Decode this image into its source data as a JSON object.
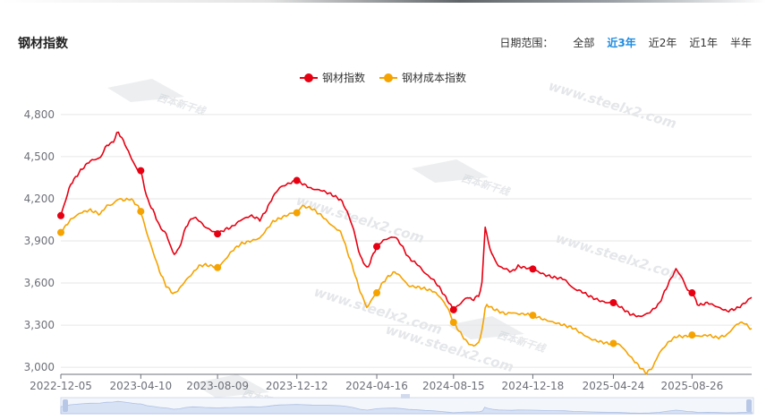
{
  "header": {
    "title": "钢材指数",
    "range_label": "日期范围：",
    "range_options": [
      "全部",
      "近3年",
      "近2年",
      "近1年",
      "半年"
    ],
    "active_range": "近3年"
  },
  "watermark": {
    "text": "www.steelx2.com",
    "logo_text": "西本新干线"
  },
  "colors": {
    "steel": "#e60012",
    "cost": "#f5a300",
    "active": "#1f8de0"
  },
  "chart_data": {
    "type": "line",
    "title": "钢材指数",
    "xlabel": "",
    "ylabel": "",
    "ylim": [
      2950,
      4850
    ],
    "yticks": [
      3000,
      3300,
      3600,
      3900,
      4200,
      4500,
      4800
    ],
    "ytick_labels": [
      "3,000",
      "3,300",
      "3,600",
      "3,900",
      "4,200",
      "4,500",
      "4,800"
    ],
    "xtick_labels": [
      "2022-12-05",
      "2023-04-10",
      "2023-08-09",
      "2023-12-12",
      "2024-04-16",
      "2024-08-15",
      "2024-12-18",
      "2025-04-24",
      "2025-08-26"
    ],
    "x_start": "2022-12-05",
    "x_end": "2025-11-28",
    "grid": true,
    "legend_position": "top-center",
    "series": [
      {
        "name": "钢材指数",
        "color": "#e60012",
        "points": [
          [
            "2022-12-05",
            4080
          ],
          [
            "2022-12-20",
            4300
          ],
          [
            "2023-01-05",
            4400
          ],
          [
            "2023-01-20",
            4470
          ],
          [
            "2023-02-05",
            4490
          ],
          [
            "2023-02-15",
            4580
          ],
          [
            "2023-02-25",
            4600
          ],
          [
            "2023-03-05",
            4680
          ],
          [
            "2023-03-15",
            4600
          ],
          [
            "2023-03-25",
            4500
          ],
          [
            "2023-04-05",
            4400
          ],
          [
            "2023-04-10",
            4400
          ],
          [
            "2023-04-20",
            4200
          ],
          [
            "2023-05-01",
            4100
          ],
          [
            "2023-05-10",
            4000
          ],
          [
            "2023-05-20",
            3950
          ],
          [
            "2023-06-01",
            3800
          ],
          [
            "2023-06-10",
            3850
          ],
          [
            "2023-06-20",
            4000
          ],
          [
            "2023-07-01",
            4070
          ],
          [
            "2023-07-10",
            4050
          ],
          [
            "2023-07-20",
            4000
          ],
          [
            "2023-08-01",
            3970
          ],
          [
            "2023-08-09",
            3950
          ],
          [
            "2023-08-20",
            3980
          ],
          [
            "2023-09-01",
            4000
          ],
          [
            "2023-09-15",
            4050
          ],
          [
            "2023-10-01",
            4080
          ],
          [
            "2023-10-15",
            4050
          ],
          [
            "2023-10-25",
            4120
          ],
          [
            "2023-11-05",
            4220
          ],
          [
            "2023-11-15",
            4280
          ],
          [
            "2023-11-25",
            4300
          ],
          [
            "2023-12-05",
            4320
          ],
          [
            "2023-12-12",
            4330
          ],
          [
            "2023-12-20",
            4310
          ],
          [
            "2024-01-05",
            4270
          ],
          [
            "2024-01-20",
            4260
          ],
          [
            "2024-02-05",
            4230
          ],
          [
            "2024-02-20",
            4190
          ],
          [
            "2024-03-01",
            4100
          ],
          [
            "2024-03-10",
            3990
          ],
          [
            "2024-03-20",
            3800
          ],
          [
            "2024-04-01",
            3700
          ],
          [
            "2024-04-10",
            3800
          ],
          [
            "2024-04-16",
            3860
          ],
          [
            "2024-04-25",
            3900
          ],
          [
            "2024-05-05",
            3920
          ],
          [
            "2024-05-15",
            3930
          ],
          [
            "2024-05-25",
            3870
          ],
          [
            "2024-06-05",
            3780
          ],
          [
            "2024-06-20",
            3730
          ],
          [
            "2024-07-01",
            3670
          ],
          [
            "2024-07-15",
            3620
          ],
          [
            "2024-07-25",
            3560
          ],
          [
            "2024-08-05",
            3480
          ],
          [
            "2024-08-15",
            3410
          ],
          [
            "2024-08-25",
            3450
          ],
          [
            "2024-09-05",
            3500
          ],
          [
            "2024-09-15",
            3480
          ],
          [
            "2024-09-25",
            3520
          ],
          [
            "2024-09-30",
            3620
          ],
          [
            "2024-10-03",
            4030
          ],
          [
            "2024-10-08",
            3900
          ],
          [
            "2024-10-15",
            3800
          ],
          [
            "2024-10-25",
            3720
          ],
          [
            "2024-11-05",
            3700
          ],
          [
            "2024-11-15",
            3680
          ],
          [
            "2024-11-25",
            3720
          ],
          [
            "2024-12-05",
            3710
          ],
          [
            "2024-12-18",
            3700
          ],
          [
            "2025-01-05",
            3660
          ],
          [
            "2025-01-20",
            3640
          ],
          [
            "2025-02-05",
            3630
          ],
          [
            "2025-02-20",
            3560
          ],
          [
            "2025-03-05",
            3540
          ],
          [
            "2025-03-20",
            3500
          ],
          [
            "2025-04-05",
            3470
          ],
          [
            "2025-04-15",
            3460
          ],
          [
            "2025-04-24",
            3460
          ],
          [
            "2025-05-05",
            3430
          ],
          [
            "2025-05-20",
            3380
          ],
          [
            "2025-06-05",
            3360
          ],
          [
            "2025-06-20",
            3390
          ],
          [
            "2025-07-05",
            3450
          ],
          [
            "2025-07-20",
            3600
          ],
          [
            "2025-08-01",
            3700
          ],
          [
            "2025-08-10",
            3640
          ],
          [
            "2025-08-20",
            3540
          ],
          [
            "2025-08-26",
            3530
          ],
          [
            "2025-09-05",
            3440
          ],
          [
            "2025-09-20",
            3460
          ],
          [
            "2025-10-05",
            3430
          ],
          [
            "2025-10-20",
            3400
          ],
          [
            "2025-11-05",
            3420
          ],
          [
            "2025-11-15",
            3450
          ],
          [
            "2025-11-28",
            3500
          ]
        ],
        "markers": [
          "2022-12-05",
          "2023-04-10",
          "2023-08-09",
          "2023-12-12",
          "2024-04-16",
          "2024-08-15",
          "2024-12-18",
          "2025-04-24",
          "2025-08-26"
        ]
      },
      {
        "name": "钢材成本指数",
        "color": "#f5a300",
        "points": [
          [
            "2022-12-05",
            3960
          ],
          [
            "2022-12-20",
            4050
          ],
          [
            "2023-01-05",
            4100
          ],
          [
            "2023-01-20",
            4120
          ],
          [
            "2023-02-05",
            4090
          ],
          [
            "2023-02-15",
            4150
          ],
          [
            "2023-02-25",
            4160
          ],
          [
            "2023-03-05",
            4200
          ],
          [
            "2023-03-15",
            4190
          ],
          [
            "2023-03-25",
            4200
          ],
          [
            "2023-04-05",
            4150
          ],
          [
            "2023-04-10",
            4110
          ],
          [
            "2023-04-20",
            3950
          ],
          [
            "2023-05-01",
            3800
          ],
          [
            "2023-05-10",
            3680
          ],
          [
            "2023-05-20",
            3580
          ],
          [
            "2023-06-01",
            3520
          ],
          [
            "2023-06-10",
            3560
          ],
          [
            "2023-06-20",
            3620
          ],
          [
            "2023-07-01",
            3670
          ],
          [
            "2023-07-10",
            3720
          ],
          [
            "2023-07-20",
            3730
          ],
          [
            "2023-08-01",
            3720
          ],
          [
            "2023-08-09",
            3710
          ],
          [
            "2023-08-20",
            3760
          ],
          [
            "2023-09-01",
            3830
          ],
          [
            "2023-09-15",
            3880
          ],
          [
            "2023-10-01",
            3900
          ],
          [
            "2023-10-15",
            3920
          ],
          [
            "2023-10-25",
            3980
          ],
          [
            "2023-11-05",
            4040
          ],
          [
            "2023-11-15",
            4060
          ],
          [
            "2023-11-25",
            4080
          ],
          [
            "2023-12-05",
            4100
          ],
          [
            "2023-12-12",
            4100
          ],
          [
            "2023-12-20",
            4150
          ],
          [
            "2024-01-05",
            4130
          ],
          [
            "2024-01-20",
            4080
          ],
          [
            "2024-02-05",
            4010
          ],
          [
            "2024-02-20",
            3960
          ],
          [
            "2024-03-01",
            3820
          ],
          [
            "2024-03-10",
            3700
          ],
          [
            "2024-03-20",
            3550
          ],
          [
            "2024-04-01",
            3420
          ],
          [
            "2024-04-10",
            3500
          ],
          [
            "2024-04-16",
            3530
          ],
          [
            "2024-04-25",
            3600
          ],
          [
            "2024-05-05",
            3650
          ],
          [
            "2024-05-15",
            3680
          ],
          [
            "2024-05-25",
            3640
          ],
          [
            "2024-06-05",
            3580
          ],
          [
            "2024-06-20",
            3570
          ],
          [
            "2024-07-01",
            3560
          ],
          [
            "2024-07-15",
            3540
          ],
          [
            "2024-07-25",
            3500
          ],
          [
            "2024-08-05",
            3430
          ],
          [
            "2024-08-15",
            3320
          ],
          [
            "2024-08-25",
            3250
          ],
          [
            "2024-09-05",
            3180
          ],
          [
            "2024-09-15",
            3150
          ],
          [
            "2024-09-25",
            3180
          ],
          [
            "2024-09-30",
            3300
          ],
          [
            "2024-10-05",
            3450
          ],
          [
            "2024-10-15",
            3420
          ],
          [
            "2024-10-25",
            3400
          ],
          [
            "2024-11-05",
            3380
          ],
          [
            "2024-11-15",
            3390
          ],
          [
            "2024-11-25",
            3380
          ],
          [
            "2024-12-05",
            3380
          ],
          [
            "2024-12-18",
            3370
          ],
          [
            "2025-01-05",
            3340
          ],
          [
            "2025-01-20",
            3320
          ],
          [
            "2025-02-05",
            3300
          ],
          [
            "2025-02-20",
            3280
          ],
          [
            "2025-03-05",
            3240
          ],
          [
            "2025-03-20",
            3200
          ],
          [
            "2025-04-05",
            3180
          ],
          [
            "2025-04-15",
            3170
          ],
          [
            "2025-04-24",
            3170
          ],
          [
            "2025-05-05",
            3160
          ],
          [
            "2025-05-20",
            3080
          ],
          [
            "2025-06-05",
            3000
          ],
          [
            "2025-06-15",
            2960
          ],
          [
            "2025-06-25",
            3000
          ],
          [
            "2025-07-05",
            3100
          ],
          [
            "2025-07-20",
            3180
          ],
          [
            "2025-08-01",
            3220
          ],
          [
            "2025-08-15",
            3220
          ],
          [
            "2025-08-26",
            3230
          ],
          [
            "2025-09-05",
            3220
          ],
          [
            "2025-09-20",
            3230
          ],
          [
            "2025-10-05",
            3210
          ],
          [
            "2025-10-20",
            3230
          ],
          [
            "2025-11-05",
            3310
          ],
          [
            "2025-11-15",
            3320
          ],
          [
            "2025-11-28",
            3270
          ]
        ],
        "markers": [
          "2022-12-05",
          "2023-04-10",
          "2023-08-09",
          "2023-12-12",
          "2024-04-16",
          "2024-08-15",
          "2024-12-18",
          "2025-04-24",
          "2025-08-26"
        ]
      }
    ]
  }
}
